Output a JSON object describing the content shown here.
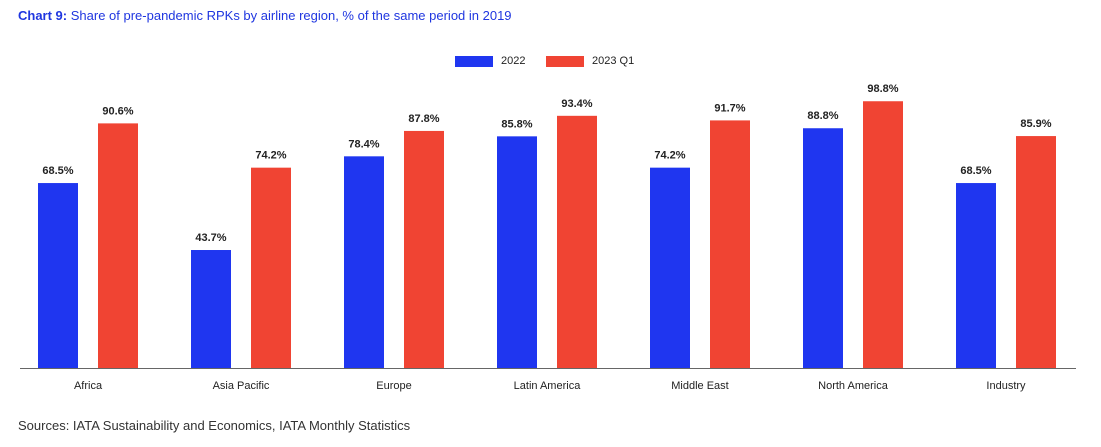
{
  "title": {
    "lead": "Chart 9:",
    "text": " Share of pre-pandemic RPKs by airline region, % of the same period in 2019"
  },
  "source": "Sources: IATA Sustainability and Economics, IATA Monthly Statistics",
  "colors": {
    "title": "#1f36e0",
    "series_2022": "#1f36f0",
    "series_2023q1": "#f04433",
    "axis": "#666666"
  },
  "chart_data": {
    "type": "bar",
    "categories": [
      "Africa",
      "Asia Pacific",
      "Europe",
      "Latin America",
      "Middle East",
      "North America",
      "Industry"
    ],
    "series": [
      {
        "name": "2022",
        "values": [
          68.5,
          43.7,
          78.4,
          85.8,
          74.2,
          88.8,
          68.5
        ],
        "labels": [
          "68.5%",
          "43.7%",
          "78.4%",
          "85.8%",
          "74.2%",
          "88.8%",
          "68.5%"
        ]
      },
      {
        "name": "2023 Q1",
        "values": [
          90.6,
          74.2,
          87.8,
          93.4,
          91.7,
          98.8,
          85.9
        ],
        "labels": [
          "90.6%",
          "74.2%",
          "87.8%",
          "93.4%",
          "91.7%",
          "98.8%",
          "85.9%"
        ]
      }
    ],
    "ylim": [
      0,
      100
    ],
    "grid": false,
    "legend_position": "top-center"
  }
}
